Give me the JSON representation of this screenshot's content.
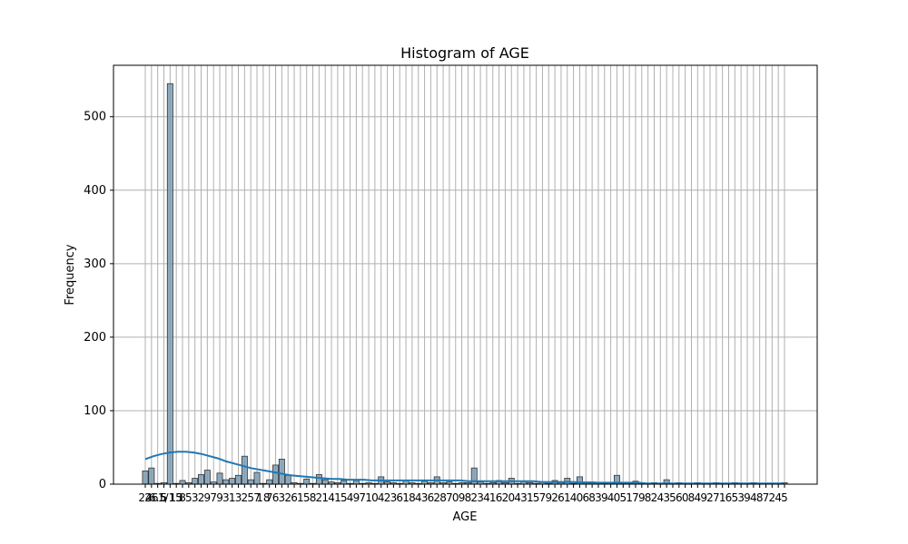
{
  "chart_data": {
    "type": "bar",
    "title": "Histogram of AGE",
    "xlabel": "AGE",
    "ylabel": "Frequency",
    "ylim": [
      0,
      570
    ],
    "yticks": [
      0,
      100,
      200,
      300,
      400,
      500
    ],
    "grid": true,
    "bar_color": "#7a9cb5",
    "kde_color": "#1f77b4",
    "categories": [
      "24",
      "26",
      "6.5",
      "5",
      "1/15",
      "13",
      "8",
      "5",
      "3",
      "2",
      "9",
      "7",
      "9",
      "3",
      "1",
      "3",
      "2",
      "5",
      "7",
      "18",
      "7",
      "6",
      "3",
      "2",
      "6",
      "1",
      "5",
      "8",
      "2",
      "1",
      "4",
      "1",
      "5",
      "4",
      "9",
      "7",
      "1",
      "0",
      "4",
      "2",
      "3",
      "6",
      "1",
      "8",
      "4",
      "3",
      "6",
      "2",
      "8",
      "7",
      "0",
      "9",
      "8",
      "2",
      "3",
      "4",
      "1",
      "6",
      "2",
      "0",
      "4",
      "3",
      "1",
      "5",
      "7",
      "9",
      "2",
      "6",
      "1",
      "4",
      "0",
      "6",
      "8",
      "3",
      "9",
      "4",
      "0",
      "5",
      "1",
      "7",
      "9",
      "8",
      "2",
      "4",
      "3",
      "5",
      "6",
      "0",
      "8",
      "4",
      "9",
      "2",
      "7",
      "1",
      "6",
      "5",
      "3",
      "9",
      "4",
      "8",
      "7",
      "2",
      "4",
      "5"
    ],
    "values": [
      18,
      22,
      1,
      2,
      545,
      1,
      5,
      2,
      8,
      13,
      19,
      3,
      15,
      6,
      8,
      12,
      38,
      6,
      16,
      1,
      6,
      26,
      34,
      12,
      2,
      1,
      7,
      1,
      13,
      6,
      3,
      2,
      5,
      1,
      5,
      1,
      2,
      1,
      10,
      3,
      2,
      1,
      5,
      2,
      1,
      4,
      2,
      10,
      2,
      3,
      1,
      2,
      2,
      22,
      3,
      1,
      2,
      5,
      2,
      8,
      1,
      4,
      2,
      1,
      3,
      1,
      5,
      2,
      8,
      1,
      10,
      3,
      3,
      2,
      1,
      2,
      12,
      1,
      1,
      4,
      2,
      1,
      2,
      1,
      6,
      1,
      2,
      1,
      1,
      2,
      1,
      1,
      2,
      1,
      1,
      2,
      1,
      1,
      2,
      1,
      1,
      1,
      1,
      2
    ],
    "kde": [
      34,
      38,
      41,
      43,
      44,
      44,
      43,
      41,
      38,
      35,
      31,
      28,
      25,
      22,
      20,
      18,
      16,
      14,
      12,
      11,
      10,
      9,
      8,
      7,
      7,
      6,
      6,
      6,
      5,
      5,
      5,
      5,
      5,
      5,
      5,
      5,
      5,
      5,
      5,
      5,
      4,
      4,
      4,
      4,
      4,
      4,
      4,
      4,
      4,
      3,
      3,
      3,
      3,
      3,
      2,
      2,
      2,
      2,
      2,
      2,
      2,
      2,
      1,
      1,
      1,
      1,
      1,
      1,
      1,
      1,
      1,
      1,
      1,
      1,
      1,
      1,
      1,
      1,
      1,
      1
    ]
  }
}
